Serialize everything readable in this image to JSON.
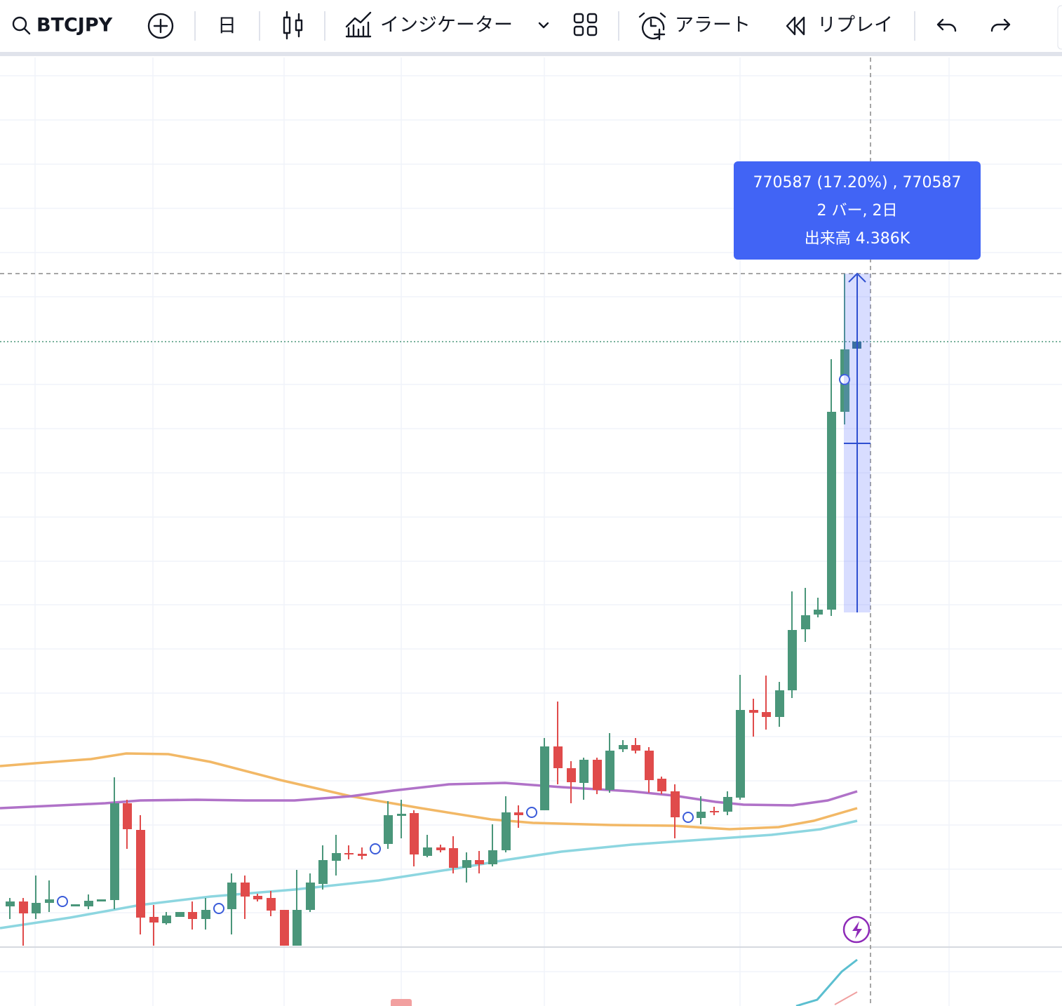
{
  "toolbar": {
    "symbol": "BTCJPY",
    "interval": "日",
    "indicators": "インジケーター",
    "alert": "アラート",
    "replay": "リプレイ"
  },
  "measure": {
    "line1": "770587 (17.20%) , 770587",
    "line2": "2 バー, 2日",
    "line3": "出来高 4.386K"
  }
}
